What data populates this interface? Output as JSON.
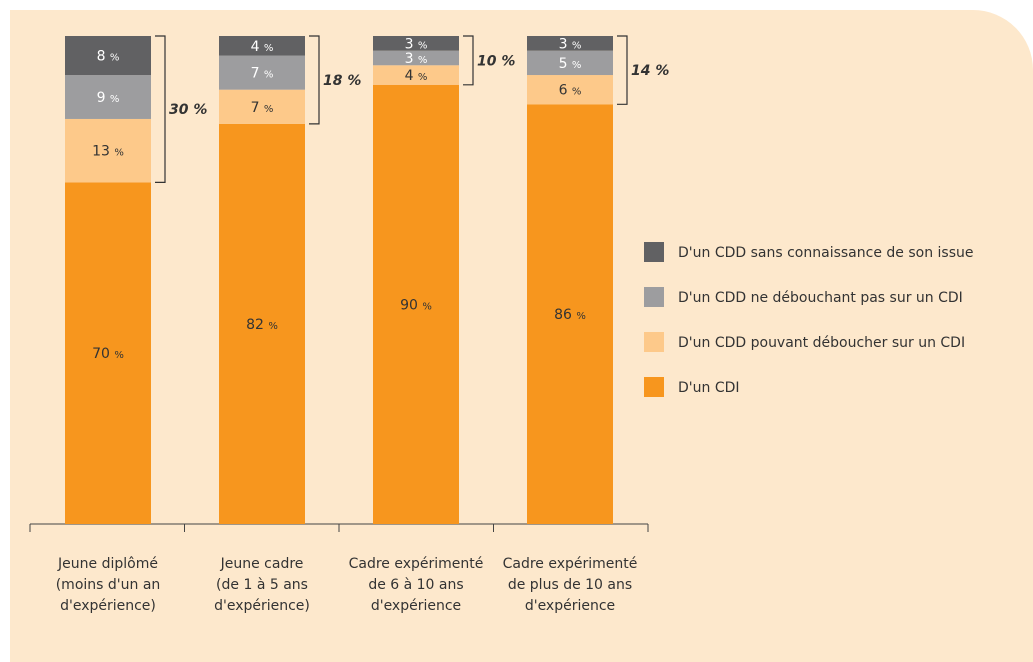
{
  "chart_data": {
    "type": "bar",
    "stacked": true,
    "categories": [
      [
        "Jeune diplômé",
        "(moins d'un an",
        "d'expérience)"
      ],
      [
        "Jeune cadre",
        "(de 1 à 5 ans",
        "d'expérience)"
      ],
      [
        "Cadre expérimenté",
        "de 6 à 10 ans",
        "d'expérience"
      ],
      [
        "Cadre expérimenté",
        "de plus de 10 ans",
        "d'expérience"
      ]
    ],
    "series": [
      {
        "name": "D'un CDI",
        "color": "#f7961e",
        "values": [
          70,
          82,
          90,
          86
        ]
      },
      {
        "name": "D'un CDD pouvant déboucher sur un CDI",
        "color": "#fdc98a",
        "values": [
          13,
          7,
          4,
          6
        ]
      },
      {
        "name": "D'un CDD ne débouchant pas sur un CDI",
        "color": "#9d9d9f",
        "values": [
          9,
          7,
          3,
          5
        ]
      },
      {
        "name": "D'un CDD sans connaissance de son issue",
        "color": "#616163",
        "values": [
          8,
          4,
          3,
          3
        ]
      }
    ],
    "value_suffix": "%",
    "bracket_totals": [
      30,
      18,
      10,
      14
    ],
    "bracket_suffix": " %",
    "legend_position": "right",
    "ylim": [
      0,
      100
    ],
    "grid": false
  }
}
